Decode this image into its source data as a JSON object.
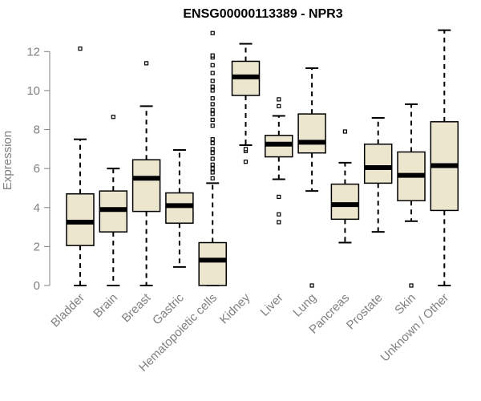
{
  "chart_data": {
    "type": "boxplot",
    "title": "ENSG00000113389 - NPR3",
    "xlabel": "",
    "ylabel": "Expression",
    "ylim": [
      0,
      13
    ],
    "yticks": [
      0,
      2,
      4,
      6,
      8,
      10,
      12
    ],
    "box_fill": "#ede6cf",
    "categories": [
      "Bladder",
      "Brain",
      "Breast",
      "Gastric",
      "Hematopoietic cells",
      "Kidney",
      "Liver",
      "Lung",
      "Pancreas",
      "Prostate",
      "Skin",
      "Unknown / Other"
    ],
    "boxes": [
      {
        "name": "Bladder",
        "min": 0,
        "q1": 2.05,
        "median": 3.25,
        "q3": 4.7,
        "max": 7.5,
        "outliers": [
          12.15
        ]
      },
      {
        "name": "Brain",
        "min": 0,
        "q1": 2.75,
        "median": 3.9,
        "q3": 4.85,
        "max": 6.0,
        "outliers": [
          8.65
        ]
      },
      {
        "name": "Breast",
        "min": 0,
        "q1": 3.8,
        "median": 5.5,
        "q3": 6.45,
        "max": 9.2,
        "outliers": [
          11.4
        ]
      },
      {
        "name": "Gastric",
        "min": 0.95,
        "q1": 3.2,
        "median": 4.1,
        "q3": 4.75,
        "max": 6.95,
        "outliers": []
      },
      {
        "name": "Hematopoietic cells",
        "min": 0,
        "q1": 0,
        "median": 1.3,
        "q3": 2.2,
        "max": 5.25,
        "outliers": [
          5.5,
          5.8,
          6.0,
          6.2,
          6.5,
          6.8,
          7.0,
          7.3,
          7.5,
          8.2,
          8.5,
          8.8,
          9.0,
          9.3,
          9.6,
          10.0,
          10.2,
          10.5,
          10.9,
          11.3,
          11.7,
          11.8,
          12.95
        ]
      },
      {
        "name": "Kidney",
        "min": 7.2,
        "q1": 9.75,
        "median": 10.7,
        "q3": 11.5,
        "max": 12.4,
        "outliers": [
          6.35,
          6.9,
          7.0
        ]
      },
      {
        "name": "Liver",
        "min": 5.45,
        "q1": 6.6,
        "median": 7.25,
        "q3": 7.7,
        "max": 8.7,
        "outliers": [
          3.25,
          3.65,
          4.55,
          9.2,
          9.55
        ]
      },
      {
        "name": "Lung",
        "min": 4.85,
        "q1": 6.8,
        "median": 7.35,
        "q3": 8.8,
        "max": 11.15,
        "outliers": [
          0
        ]
      },
      {
        "name": "Pancreas",
        "min": 2.2,
        "q1": 3.4,
        "median": 4.15,
        "q3": 5.2,
        "max": 6.3,
        "outliers": [
          7.9
        ]
      },
      {
        "name": "Prostate",
        "min": 2.75,
        "q1": 5.25,
        "median": 6.05,
        "q3": 7.25,
        "max": 8.6,
        "outliers": []
      },
      {
        "name": "Skin",
        "min": 3.3,
        "q1": 4.35,
        "median": 5.65,
        "q3": 6.85,
        "max": 9.3,
        "outliers": [
          0
        ]
      },
      {
        "name": "Unknown / Other",
        "min": 0,
        "q1": 3.85,
        "median": 6.15,
        "q3": 8.4,
        "max": 13.1,
        "outliers": []
      }
    ]
  }
}
